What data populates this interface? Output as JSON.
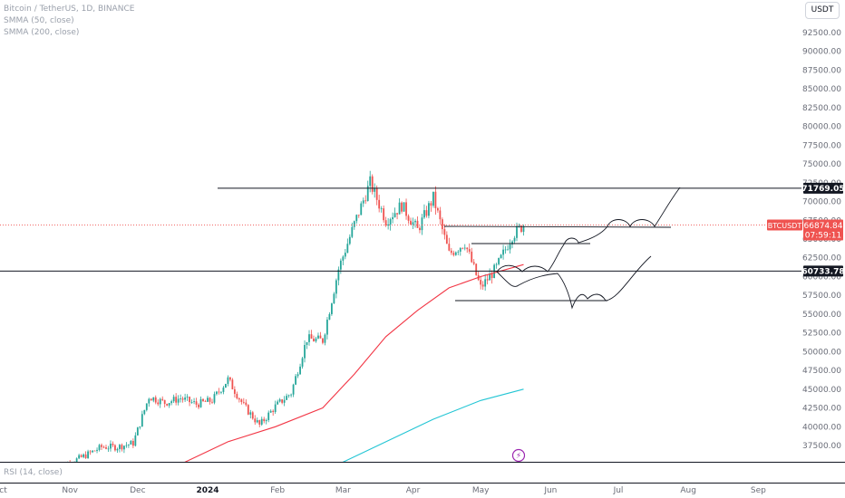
{
  "legend": {
    "symbol": "Bitcoin / TetherUS, 1D, BINANCE",
    "ma1": "SMMA (50, close)",
    "ma2": "SMMA (200, close)"
  },
  "toolbar": {
    "currency": "USDT"
  },
  "rsi": {
    "label": "RSI (14, close)"
  },
  "chart_data": {
    "type": "candlestick",
    "y_axis_labels": [
      "37500.00",
      "40000.00",
      "42500.00",
      "45000.00",
      "47500.00",
      "50000.00",
      "52500.00",
      "55000.00",
      "57500.00",
      "60000.00",
      "62500.00",
      "65000.00",
      "67500.00",
      "70000.00",
      "72500.00",
      "75000.00",
      "77500.00",
      "80000.00",
      "82500.00",
      "85000.00",
      "87500.00",
      "90000.00",
      "92500.00"
    ],
    "y_range": [
      35000,
      95000
    ],
    "x_axis_labels": [
      "Oct",
      "Nov",
      "Dec",
      "2024",
      "Feb",
      "Mar",
      "Apr",
      "May",
      "Jun",
      "Jul",
      "Aug",
      "Sep"
    ],
    "price_lines": [
      {
        "value": 71769.05,
        "label": "71769.05"
      },
      {
        "value": 60733.78,
        "label": "60733.78"
      }
    ],
    "current": {
      "symbol": "BTCUSDT",
      "price": "66874.84",
      "countdown": "07:59:11",
      "value": 66874.84
    },
    "colors": {
      "up": "#26a69a",
      "down": "#ef5350",
      "ma50": "#f23645",
      "ma200": "#22c5d4",
      "line": "#131722"
    },
    "close_points": [
      [
        "2023-10-25",
        34500
      ],
      [
        "2023-11-01",
        35200
      ],
      [
        "2023-11-08",
        36200
      ],
      [
        "2023-11-15",
        37300
      ],
      [
        "2023-11-22",
        37300
      ],
      [
        "2023-11-29",
        37800
      ],
      [
        "2023-12-06",
        44000
      ],
      [
        "2023-12-13",
        43200
      ],
      [
        "2023-12-20",
        43800
      ],
      [
        "2023-12-27",
        43000
      ],
      [
        "2024-01-03",
        43500
      ],
      [
        "2024-01-10",
        46300
      ],
      [
        "2024-01-17",
        42800
      ],
      [
        "2024-01-24",
        40200
      ],
      [
        "2024-01-31",
        42700
      ],
      [
        "2024-02-07",
        44500
      ],
      [
        "2024-02-14",
        51700
      ],
      [
        "2024-02-21",
        51500
      ],
      [
        "2024-02-28",
        61000
      ],
      [
        "2024-03-06",
        67000
      ],
      [
        "2024-03-13",
        72500
      ],
      [
        "2024-03-20",
        67500
      ],
      [
        "2024-03-27",
        69500
      ],
      [
        "2024-04-03",
        66200
      ],
      [
        "2024-04-10",
        70500
      ],
      [
        "2024-04-17",
        63000
      ],
      [
        "2024-04-24",
        64500
      ],
      [
        "2024-05-01",
        58500
      ],
      [
        "2024-05-08",
        61200
      ],
      [
        "2024-05-15",
        65500
      ],
      [
        "2024-05-20",
        66874.84
      ]
    ],
    "ma50_points": [
      [
        "2023-12-20",
        35000
      ],
      [
        "2024-01-10",
        38000
      ],
      [
        "2024-01-31",
        40000
      ],
      [
        "2024-02-21",
        42500
      ],
      [
        "2024-03-06",
        47000
      ],
      [
        "2024-03-20",
        52000
      ],
      [
        "2024-04-03",
        55500
      ],
      [
        "2024-04-17",
        58500
      ],
      [
        "2024-05-01",
        60000
      ],
      [
        "2024-05-20",
        61600
      ]
    ],
    "ma200_points": [
      [
        "2024-02-28",
        35000
      ],
      [
        "2024-03-20",
        38000
      ],
      [
        "2024-04-10",
        41000
      ],
      [
        "2024-05-01",
        43500
      ],
      [
        "2024-05-20",
        45000
      ]
    ]
  }
}
